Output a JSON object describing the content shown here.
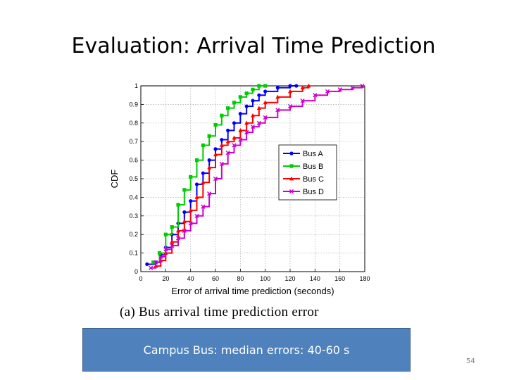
{
  "slide": {
    "title": "Evaluation: Arrival Time Prediction",
    "caption": "(a) Bus arrival time prediction error",
    "note": "Campus Bus: median errors: 40-60 s",
    "page_number": "54"
  },
  "chart_data": {
    "type": "line",
    "title": "",
    "xlabel": "Error of arrival time prediction (seconds)",
    "ylabel": "CDF",
    "xlim": [
      0,
      180
    ],
    "ylim": [
      0,
      1
    ],
    "xticks": [
      0,
      20,
      40,
      60,
      80,
      100,
      120,
      140,
      160,
      180
    ],
    "yticks": [
      0,
      0.1,
      0.2,
      0.3,
      0.4,
      0.5,
      0.6,
      0.7,
      0.8,
      0.9,
      1
    ],
    "grid": true,
    "legend": "center-right",
    "series": [
      {
        "name": "Bus A",
        "color": "#0000ff",
        "marker": "circle",
        "x": [
          5,
          12,
          16,
          20,
          25,
          30,
          35,
          40,
          45,
          50,
          55,
          60,
          65,
          70,
          75,
          80,
          85,
          90,
          95,
          100,
          110,
          120,
          125
        ],
        "y": [
          0.04,
          0.05,
          0.09,
          0.13,
          0.2,
          0.26,
          0.32,
          0.38,
          0.47,
          0.53,
          0.6,
          0.66,
          0.71,
          0.76,
          0.8,
          0.85,
          0.89,
          0.92,
          0.95,
          0.97,
          0.99,
          1.0,
          1.0
        ]
      },
      {
        "name": "Bus B",
        "color": "#00cc00",
        "marker": "square",
        "x": [
          10,
          15,
          20,
          25,
          30,
          35,
          40,
          45,
          50,
          55,
          60,
          65,
          70,
          75,
          80,
          85,
          90,
          95,
          100
        ],
        "y": [
          0.05,
          0.1,
          0.2,
          0.24,
          0.36,
          0.44,
          0.51,
          0.6,
          0.68,
          0.73,
          0.79,
          0.84,
          0.88,
          0.91,
          0.94,
          0.96,
          0.98,
          1.0,
          1.0
        ]
      },
      {
        "name": "Bus C",
        "color": "#ff0000",
        "marker": "triangle",
        "x": [
          12,
          16,
          20,
          25,
          30,
          35,
          40,
          45,
          50,
          55,
          60,
          65,
          70,
          75,
          80,
          85,
          90,
          95,
          100,
          110,
          120,
          130,
          135
        ],
        "y": [
          0.03,
          0.06,
          0.1,
          0.16,
          0.22,
          0.27,
          0.33,
          0.4,
          0.48,
          0.56,
          0.63,
          0.68,
          0.7,
          0.72,
          0.76,
          0.8,
          0.84,
          0.88,
          0.91,
          0.94,
          0.97,
          0.99,
          1.0
        ]
      },
      {
        "name": "Bus D",
        "color": "#cc00cc",
        "marker": "x",
        "x": [
          8,
          12,
          16,
          20,
          25,
          30,
          35,
          40,
          45,
          50,
          55,
          60,
          65,
          70,
          75,
          80,
          85,
          90,
          95,
          100,
          110,
          120,
          130,
          140,
          150,
          160,
          170,
          178
        ],
        "y": [
          0.02,
          0.05,
          0.08,
          0.12,
          0.14,
          0.18,
          0.22,
          0.26,
          0.3,
          0.35,
          0.42,
          0.5,
          0.58,
          0.64,
          0.68,
          0.71,
          0.75,
          0.78,
          0.8,
          0.83,
          0.87,
          0.89,
          0.92,
          0.95,
          0.97,
          0.98,
          0.99,
          1.0
        ]
      }
    ]
  }
}
